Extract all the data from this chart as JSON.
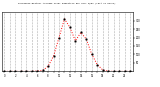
{
  "title": "Milwaukee Weather Average Solar Radiation per Hour W/m2 (Last 24 Hours)",
  "x_values": [
    0,
    1,
    2,
    3,
    4,
    5,
    6,
    7,
    8,
    9,
    10,
    11,
    12,
    13,
    14,
    15,
    16,
    17,
    18,
    19,
    20,
    21,
    22,
    23
  ],
  "y_values": [
    0,
    0,
    0,
    0,
    0,
    0,
    2,
    5,
    30,
    90,
    200,
    310,
    260,
    180,
    230,
    190,
    100,
    40,
    8,
    1,
    0,
    0,
    0,
    0
  ],
  "ylim": [
    0,
    350
  ],
  "yticks": [
    50,
    100,
    150,
    200,
    250,
    300
  ],
  "xlim": [
    -0.5,
    23.5
  ],
  "line_color": "#ff0000",
  "marker_color": "#000000",
  "grid_color": "#999999",
  "bg_color": "#ffffff",
  "plot_bg_color": "#ffffff",
  "figsize": [
    1.6,
    0.87
  ],
  "dpi": 100
}
